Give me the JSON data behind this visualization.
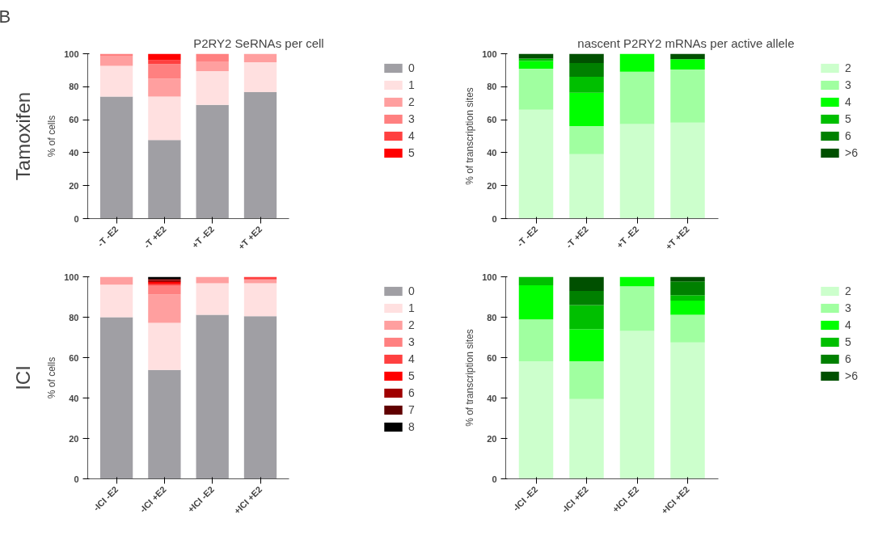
{
  "chart_data": [
    {
      "type": "bar",
      "title": "P2RY2  SeRNAs per cell",
      "ylabel": "% of cells",
      "annotations": [
        "B",
        "Tamoxifen"
      ],
      "stacked": true,
      "categories": [
        "-T -E2",
        "-T +E2",
        "+T -E2",
        "+T +E2"
      ],
      "ylim": [
        0,
        100
      ],
      "yticks": [
        0,
        20,
        40,
        60,
        80,
        100
      ],
      "grid": false,
      "legend": "right",
      "series": [
        {
          "name": "0",
          "color": "#a09fa4",
          "values": [
            74,
            47.7,
            69,
            76.7
          ]
        },
        {
          "name": "1",
          "color": "#ffe0e0",
          "values": [
            18.6,
            26.3,
            20.5,
            18.2
          ]
        },
        {
          "name": "2",
          "color": "#ff9f9f",
          "values": [
            6.2,
            10.9,
            5.8,
            5.1
          ]
        },
        {
          "name": "3",
          "color": "#ff8080",
          "values": [
            1.2,
            8.8,
            4.7,
            0
          ]
        },
        {
          "name": "4",
          "color": "#ff4040",
          "values": [
            0,
            2.4,
            0,
            0
          ]
        },
        {
          "name": "5",
          "color": "#ff0000",
          "values": [
            0,
            3.9,
            0,
            0
          ]
        }
      ]
    },
    {
      "type": "bar",
      "title": "nascent P2RY2  mRNAs per active allele",
      "ylabel": "% of transcription sites",
      "stacked": true,
      "categories": [
        "-T -E2",
        "-T +E2",
        "+T -E2",
        "+T +E2"
      ],
      "ylim": [
        0,
        100
      ],
      "yticks": [
        0,
        20,
        40,
        60,
        80,
        100
      ],
      "grid": false,
      "legend": "right",
      "series": [
        {
          "name": "2",
          "color": "#ccffcc",
          "values": [
            66.1,
            39.1,
            57.4,
            58.2
          ]
        },
        {
          "name": "3",
          "color": "#a0ffa0",
          "values": [
            24.8,
            17,
            31.7,
            32.2
          ]
        },
        {
          "name": "4",
          "color": "#00ff00",
          "values": [
            4.7,
            20.2,
            10.9,
            6.3
          ]
        },
        {
          "name": "5",
          "color": "#00bf00",
          "values": [
            1.4,
            9.7,
            0,
            0
          ]
        },
        {
          "name": "6",
          "color": "#008000",
          "values": [
            0,
            8.4,
            0,
            0
          ]
        },
        {
          "name": ">6",
          "color": "#005000",
          "values": [
            3,
            5.6,
            0,
            3.3
          ]
        }
      ]
    },
    {
      "type": "bar",
      "ylabel": "% of cells",
      "annotations": [
        "ICI"
      ],
      "stacked": true,
      "categories": [
        "-ICI -E2",
        "-ICI +E2",
        "+ICI -E2",
        "+ICI +E2"
      ],
      "ylim": [
        0,
        100
      ],
      "yticks": [
        0,
        20,
        40,
        60,
        80,
        100
      ],
      "grid": false,
      "legend": "right",
      "series": [
        {
          "name": "0",
          "color": "#a09fa4",
          "values": [
            80,
            53.9,
            81.2,
            80.5
          ]
        },
        {
          "name": "1",
          "color": "#ffe0e0",
          "values": [
            16.1,
            23.3,
            15.6,
            16.3
          ]
        },
        {
          "name": "2",
          "color": "#ff9f9f",
          "values": [
            3.9,
            14,
            3.2,
            1.9
          ]
        },
        {
          "name": "3",
          "color": "#ff8080",
          "values": [
            0,
            4.4,
            0,
            0
          ]
        },
        {
          "name": "4",
          "color": "#ff4040",
          "values": [
            0,
            1,
            0,
            1.3
          ]
        },
        {
          "name": "5",
          "color": "#ff0000",
          "values": [
            0,
            0.8,
            0,
            0
          ]
        },
        {
          "name": "6",
          "color": "#a00000",
          "values": [
            0,
            1,
            0,
            0
          ]
        },
        {
          "name": "7",
          "color": "#600000",
          "values": [
            0,
            0.6,
            0,
            0
          ]
        },
        {
          "name": "8",
          "color": "#000000",
          "values": [
            0,
            1,
            0,
            0
          ]
        }
      ]
    },
    {
      "type": "bar",
      "ylabel": "% of transcription sites",
      "stacked": true,
      "categories": [
        "-ICI -E2",
        "-ICI +E2",
        "+ICI -E2",
        "+ICI +E2"
      ],
      "ylim": [
        0,
        100
      ],
      "yticks": [
        0,
        20,
        40,
        60,
        80,
        100
      ],
      "grid": false,
      "legend": "right",
      "series": [
        {
          "name": "2",
          "color": "#ccffcc",
          "values": [
            58.2,
            39.5,
            73.2,
            67.5
          ]
        },
        {
          "name": "3",
          "color": "#a0ffa0",
          "values": [
            20.7,
            18.7,
            22.1,
            13.7
          ]
        },
        {
          "name": "4",
          "color": "#00ff00",
          "values": [
            16.9,
            15.8,
            4.7,
            7
          ]
        },
        {
          "name": "5",
          "color": "#00bf00",
          "values": [
            4.2,
            12,
            0,
            2.7
          ]
        },
        {
          "name": "6",
          "color": "#008000",
          "values": [
            0,
            7,
            0,
            6.8
          ]
        },
        {
          "name": ">6",
          "color": "#005000",
          "values": [
            0,
            7,
            0,
            2.3
          ]
        }
      ]
    }
  ]
}
